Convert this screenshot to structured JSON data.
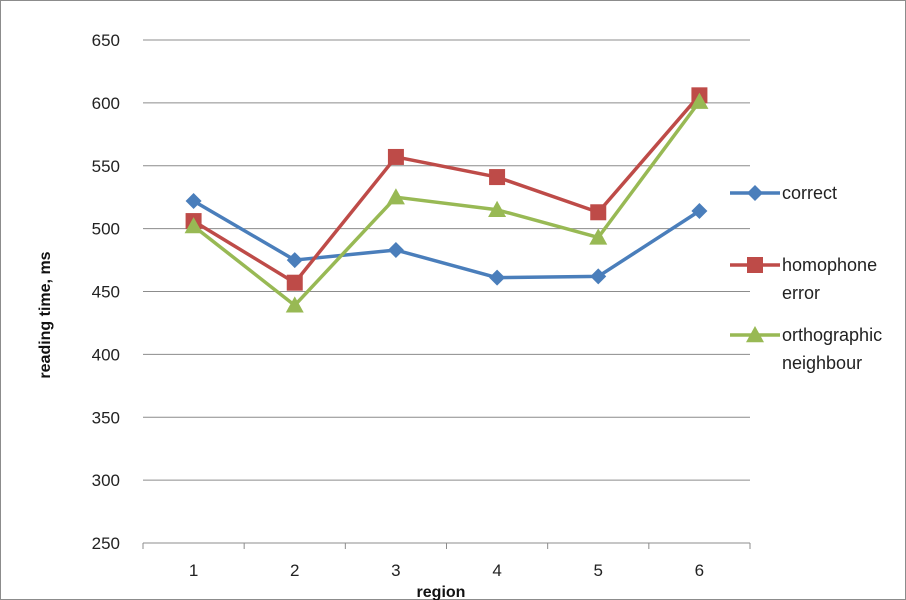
{
  "chart_data": {
    "type": "line",
    "categories": [
      "1",
      "2",
      "3",
      "4",
      "5",
      "6"
    ],
    "xlabel": "region",
    "ylabel": "reading time, ms",
    "ylim": [
      250,
      650
    ],
    "yticks": [
      "250",
      "300",
      "350",
      "400",
      "450",
      "500",
      "550",
      "600",
      "650"
    ],
    "grid": "horizontal major gridlines",
    "legend_position": "right",
    "series": [
      {
        "name": "correct",
        "name_lines": [
          "correct"
        ],
        "color": "#4a7ebb",
        "marker": "diamond",
        "values": [
          522,
          475,
          483,
          461,
          462,
          514
        ]
      },
      {
        "name": "homophone error",
        "name_lines": [
          "homophone",
          "error"
        ],
        "color": "#be4b48",
        "marker": "square",
        "values": [
          506,
          457,
          557,
          541,
          513,
          606
        ]
      },
      {
        "name": "orthographic neighbour",
        "name_lines": [
          "orthographic",
          "neighbour"
        ],
        "color": "#98b954",
        "marker": "triangle",
        "values": [
          502,
          439,
          525,
          515,
          493,
          601
        ]
      }
    ]
  }
}
